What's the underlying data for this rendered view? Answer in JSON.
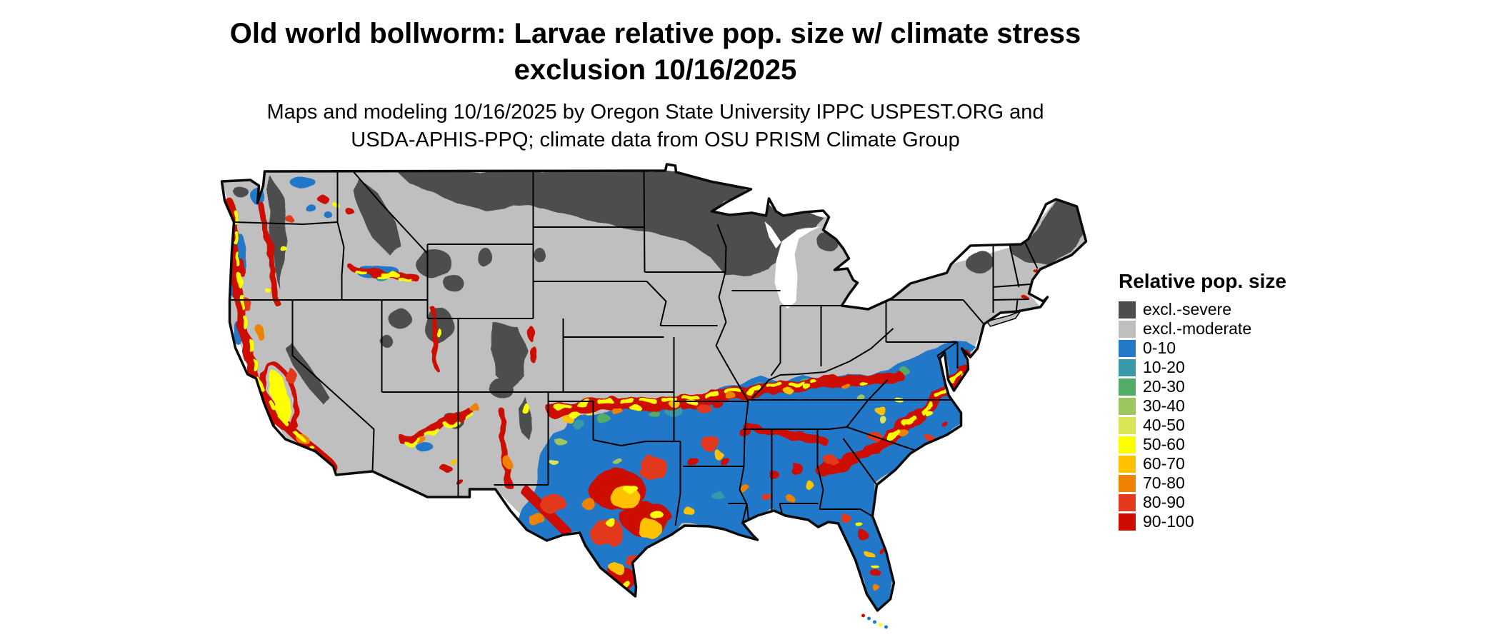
{
  "header": {
    "title_line1": "Old world bollworm: Larvae relative pop. size w/ climate stress",
    "title_line2": "exclusion 10/16/2025",
    "subtitle_line1": "Maps and modeling 10/16/2025 by Oregon State University IPPC USPEST.ORG and",
    "subtitle_line2": "USDA-APHIS-PPQ; climate data from OSU PRISM Climate Group"
  },
  "legend": {
    "title": "Relative pop. size",
    "items": [
      {
        "label": "excl.-severe",
        "color": "#4d4d4d"
      },
      {
        "label": "excl.-moderate",
        "color": "#bfbfbf"
      },
      {
        "label": "0-10",
        "color": "#2478c8"
      },
      {
        "label": "10-20",
        "color": "#3899a8"
      },
      {
        "label": "20-30",
        "color": "#53ab68"
      },
      {
        "label": "30-40",
        "color": "#9cc75e"
      },
      {
        "label": "40-50",
        "color": "#dce655"
      },
      {
        "label": "50-60",
        "color": "#ffff00"
      },
      {
        "label": "60-70",
        "color": "#ffc100"
      },
      {
        "label": "70-80",
        "color": "#ef8200"
      },
      {
        "label": "80-90",
        "color": "#e2391f"
      },
      {
        "label": "90-100",
        "color": "#cc0d00"
      }
    ]
  }
}
